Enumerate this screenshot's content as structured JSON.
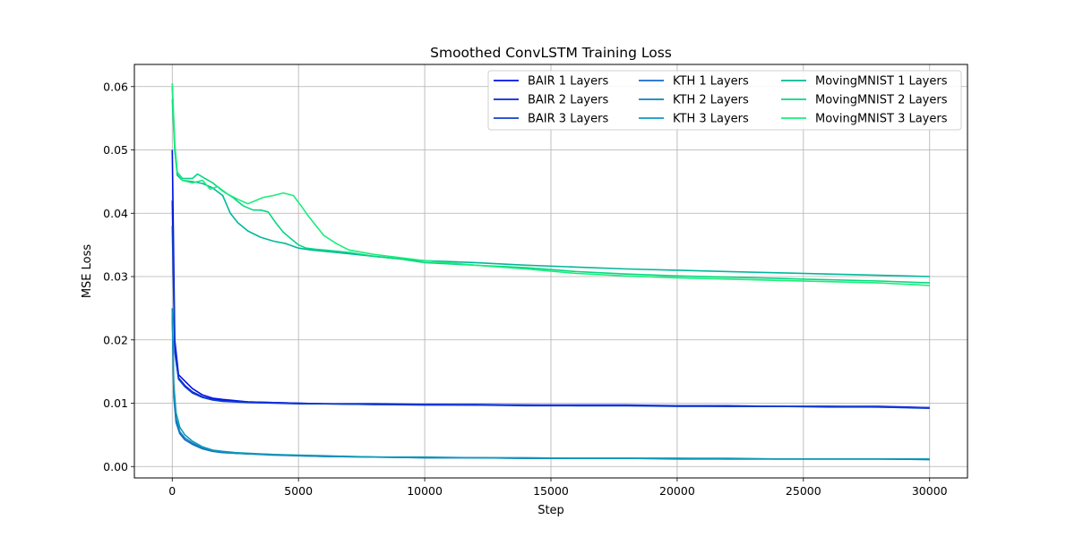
{
  "chart_data": {
    "type": "line",
    "title": "Smoothed ConvLSTM Training Loss",
    "xlabel": "Step",
    "ylabel": "MSE Loss",
    "xlim": [
      -1500,
      31500
    ],
    "ylim": [
      -0.0018,
      0.0635
    ],
    "xticks": [
      0,
      5000,
      10000,
      15000,
      20000,
      25000,
      30000
    ],
    "yticks": [
      0.0,
      0.01,
      0.02,
      0.03,
      0.04,
      0.05,
      0.06
    ],
    "grid": true,
    "legend_position": "top-right",
    "legend_columns": 3,
    "series": [
      {
        "name": "BAIR 1 Layers",
        "color": "#0010e8",
        "x": [
          0,
          100,
          250,
          500,
          800,
          1200,
          1600,
          2000,
          2500,
          3000,
          4000,
          5000,
          6000,
          8000,
          10000,
          12000,
          14000,
          16000,
          18000,
          20000,
          22000,
          24000,
          26000,
          28000,
          30000
        ],
        "y": [
          0.05,
          0.02,
          0.0145,
          0.0135,
          0.0123,
          0.0113,
          0.0108,
          0.0106,
          0.0104,
          0.0102,
          0.0101,
          0.01,
          0.0099,
          0.0099,
          0.0098,
          0.0098,
          0.0097,
          0.0097,
          0.0097,
          0.0096,
          0.0096,
          0.0095,
          0.0095,
          0.0095,
          0.0093
        ]
      },
      {
        "name": "BAIR 2 Layers",
        "color": "#0a22d8",
        "x": [
          0,
          100,
          250,
          500,
          800,
          1200,
          1600,
          2000,
          2500,
          3000,
          4000,
          5000,
          6000,
          8000,
          10000,
          12000,
          14000,
          16000,
          18000,
          20000,
          22000,
          24000,
          26000,
          28000,
          30000
        ],
        "y": [
          0.042,
          0.019,
          0.014,
          0.0128,
          0.0118,
          0.011,
          0.0106,
          0.0104,
          0.0103,
          0.0102,
          0.0101,
          0.01,
          0.0099,
          0.0098,
          0.0098,
          0.0097,
          0.0097,
          0.0096,
          0.0096,
          0.0096,
          0.0095,
          0.0095,
          0.0095,
          0.0094,
          0.0093
        ]
      },
      {
        "name": "BAIR 3 Layers",
        "color": "#1040cc",
        "x": [
          0,
          100,
          250,
          500,
          800,
          1200,
          1600,
          2000,
          2500,
          3000,
          4000,
          5000,
          6000,
          8000,
          10000,
          12000,
          14000,
          16000,
          18000,
          20000,
          22000,
          24000,
          26000,
          28000,
          30000
        ],
        "y": [
          0.038,
          0.018,
          0.0138,
          0.0126,
          0.0116,
          0.0109,
          0.0105,
          0.0103,
          0.0102,
          0.0101,
          0.01,
          0.0099,
          0.0099,
          0.0098,
          0.0097,
          0.0097,
          0.0096,
          0.0096,
          0.0096,
          0.0095,
          0.0095,
          0.0095,
          0.0094,
          0.0094,
          0.0092
        ]
      },
      {
        "name": "KTH 1 Layers",
        "color": "#1668cc",
        "x": [
          0,
          60,
          150,
          300,
          500,
          800,
          1200,
          1600,
          2000,
          2500,
          3000,
          4000,
          5000,
          6000,
          8000,
          10000,
          12000,
          14000,
          16000,
          18000,
          20000,
          22000,
          24000,
          26000,
          28000,
          30000
        ],
        "y": [
          0.024,
          0.011,
          0.007,
          0.0052,
          0.0042,
          0.0035,
          0.0028,
          0.0024,
          0.0022,
          0.0021,
          0.002,
          0.0018,
          0.0017,
          0.0016,
          0.0015,
          0.0014,
          0.0014,
          0.0013,
          0.0013,
          0.0013,
          0.0012,
          0.0012,
          0.0012,
          0.0012,
          0.0012,
          0.0011
        ]
      },
      {
        "name": "KTH 2 Layers",
        "color": "#0f80b8",
        "x": [
          0,
          60,
          150,
          300,
          500,
          800,
          1200,
          1600,
          2000,
          2500,
          3000,
          4000,
          5000,
          6000,
          8000,
          10000,
          12000,
          14000,
          16000,
          18000,
          20000,
          22000,
          24000,
          26000,
          28000,
          30000
        ],
        "y": [
          0.025,
          0.012,
          0.0075,
          0.0055,
          0.0045,
          0.0037,
          0.0029,
          0.0025,
          0.0023,
          0.0021,
          0.002,
          0.0019,
          0.0017,
          0.0016,
          0.0015,
          0.0014,
          0.0014,
          0.0013,
          0.0013,
          0.0013,
          0.0013,
          0.0012,
          0.0012,
          0.0012,
          0.0012,
          0.0011
        ]
      },
      {
        "name": "KTH 3 Layers",
        "color": "#0e9ab8",
        "x": [
          0,
          60,
          150,
          300,
          500,
          800,
          1200,
          1600,
          2000,
          2500,
          3000,
          4000,
          5000,
          6000,
          8000,
          10000,
          12000,
          14000,
          16000,
          18000,
          20000,
          22000,
          24000,
          26000,
          28000,
          30000
        ],
        "y": [
          0.0245,
          0.013,
          0.0085,
          0.0062,
          0.005,
          0.004,
          0.0031,
          0.0026,
          0.0024,
          0.0022,
          0.0021,
          0.0019,
          0.0018,
          0.0017,
          0.0015,
          0.0015,
          0.0014,
          0.0014,
          0.0013,
          0.0013,
          0.0013,
          0.0013,
          0.0012,
          0.0012,
          0.0012,
          0.0012
        ]
      },
      {
        "name": "MovingMNIST 1 Layers",
        "color": "#00b89a",
        "x": [
          0,
          100,
          200,
          400,
          800,
          1200,
          1600,
          2000,
          2300,
          2600,
          3000,
          3500,
          4000,
          4500,
          5000,
          5500,
          6000,
          7000,
          8000,
          9000,
          10000,
          12000,
          14000,
          16000,
          18000,
          20000,
          22000,
          24000,
          26000,
          28000,
          30000
        ],
        "y": [
          0.06,
          0.05,
          0.046,
          0.0452,
          0.045,
          0.0447,
          0.044,
          0.0428,
          0.04,
          0.0385,
          0.0372,
          0.0362,
          0.0356,
          0.0352,
          0.0345,
          0.0342,
          0.034,
          0.0336,
          0.0332,
          0.0328,
          0.0325,
          0.0322,
          0.0318,
          0.0315,
          0.0312,
          0.031,
          0.0308,
          0.0306,
          0.0304,
          0.0302,
          0.03
        ]
      },
      {
        "name": "MovingMNIST 2 Layers",
        "color": "#08d682",
        "x": [
          0,
          100,
          200,
          400,
          800,
          1000,
          1300,
          1600,
          2000,
          2400,
          2800,
          3200,
          3500,
          3800,
          4100,
          4400,
          4700,
          5000,
          5300,
          5700,
          6000,
          7000,
          8000,
          9000,
          10000,
          12000,
          14000,
          16000,
          18000,
          20000,
          22000,
          24000,
          26000,
          28000,
          30000
        ],
        "y": [
          0.058,
          0.05,
          0.0465,
          0.0455,
          0.0455,
          0.0462,
          0.0455,
          0.0448,
          0.0435,
          0.0425,
          0.0412,
          0.0405,
          0.0405,
          0.0402,
          0.0385,
          0.037,
          0.036,
          0.035,
          0.0345,
          0.0343,
          0.0342,
          0.0338,
          0.0332,
          0.0328,
          0.0322,
          0.0318,
          0.0314,
          0.0308,
          0.0304,
          0.0301,
          0.0299,
          0.0297,
          0.0295,
          0.0293,
          0.029
        ]
      },
      {
        "name": "MovingMNIST 3 Layers",
        "color": "#18ee7a",
        "x": [
          0,
          100,
          200,
          400,
          800,
          1200,
          1500,
          1800,
          2200,
          2600,
          3000,
          3300,
          3600,
          4000,
          4400,
          4800,
          5100,
          5400,
          5700,
          6000,
          6500,
          7000,
          8000,
          9000,
          10000,
          12000,
          14000,
          16000,
          18000,
          20000,
          22000,
          24000,
          26000,
          28000,
          30000
        ],
        "y": [
          0.0605,
          0.051,
          0.0465,
          0.0452,
          0.0448,
          0.0452,
          0.0438,
          0.0442,
          0.043,
          0.0422,
          0.0415,
          0.042,
          0.0425,
          0.0428,
          0.0432,
          0.0428,
          0.0412,
          0.0395,
          0.038,
          0.0365,
          0.0352,
          0.0342,
          0.0335,
          0.033,
          0.0325,
          0.0318,
          0.0312,
          0.0305,
          0.0301,
          0.0298,
          0.0296,
          0.0294,
          0.0292,
          0.029,
          0.0286
        ]
      }
    ]
  }
}
